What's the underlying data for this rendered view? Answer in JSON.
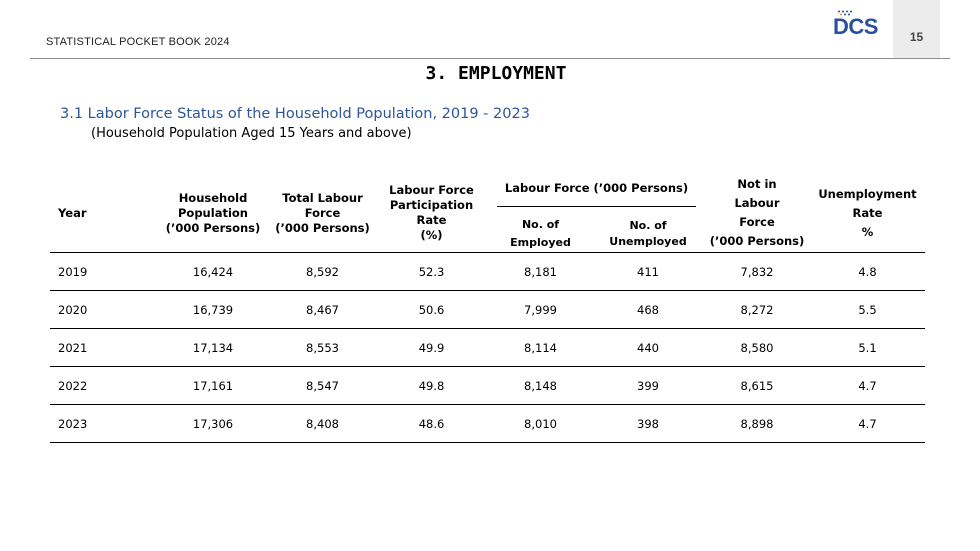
{
  "header": {
    "book_title": "STATISTICAL POCKET BOOK 2024",
    "logo_text": "DCS",
    "page_number": "15"
  },
  "chapter_title": "3. EMPLOYMENT",
  "section": {
    "title": "3.1 Labor Force Status of the Household Population, 2019 - 2023",
    "subtitle": "(Household Population Aged 15 Years and above)"
  },
  "table": {
    "headers": {
      "year": "Year",
      "household_population": [
        "Household",
        "Population",
        "(’000 Persons)"
      ],
      "total_labour_force": [
        "Total Labour",
        "Force",
        "(’000 Persons)"
      ],
      "participation_rate": [
        "Labour Force",
        "Participation",
        "Rate",
        "(%)"
      ],
      "labour_force_group": "Labour Force (’000 Persons)",
      "employed": [
        "No. of",
        "Employed"
      ],
      "unemployed": [
        "No. of",
        "Unemployed"
      ],
      "not_in_labour_force": [
        "Not in",
        "Labour",
        "Force",
        "(’000 Persons)"
      ],
      "unemployment_rate": [
        "Unemployment",
        "Rate",
        "%"
      ]
    },
    "rows": [
      {
        "year": "2019",
        "household_population": "16,424",
        "total_labour_force": "8,592",
        "participation_rate": "52.3",
        "employed": "8,181",
        "unemployed": "411",
        "not_in_labour_force": "7,832",
        "unemployment_rate": "4.8"
      },
      {
        "year": "2020",
        "household_population": "16,739",
        "total_labour_force": "8,467",
        "participation_rate": "50.6",
        "employed": "7,999",
        "unemployed": "468",
        "not_in_labour_force": "8,272",
        "unemployment_rate": "5.5"
      },
      {
        "year": "2021",
        "household_population": "17,134",
        "total_labour_force": "8,553",
        "participation_rate": "49.9",
        "employed": "8,114",
        "unemployed": "440",
        "not_in_labour_force": "8,580",
        "unemployment_rate": "5.1"
      },
      {
        "year": "2022",
        "household_population": "17,161",
        "total_labour_force": "8,547",
        "participation_rate": "49.8",
        "employed": "8,148",
        "unemployed": "399",
        "not_in_labour_force": "8,615",
        "unemployment_rate": "4.7"
      },
      {
        "year": "2023",
        "household_population": "17,306",
        "total_labour_force": "8,408",
        "participation_rate": "48.6",
        "employed": "8,010",
        "unemployed": "398",
        "not_in_labour_force": "8,898",
        "unemployment_rate": "4.7"
      }
    ]
  },
  "colors": {
    "section_title": "#2f5597",
    "logo": "#2a4fa0",
    "page_box": "#ececec"
  }
}
